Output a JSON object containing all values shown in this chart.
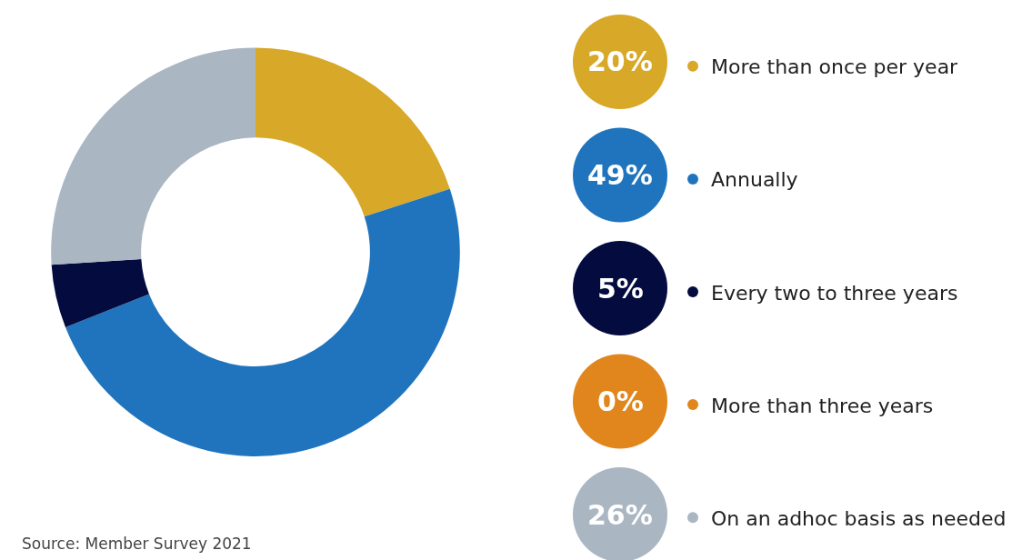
{
  "chart_data": {
    "type": "donut",
    "categories": [
      "More than once per year",
      "Annually",
      "Every two to three years",
      "More than three years",
      "On an adhoc basis as needed"
    ],
    "values": [
      20,
      49,
      5,
      0,
      26
    ],
    "colors": [
      "#d8a829",
      "#1f74bd",
      "#030b3f",
      "#e0861d",
      "#aab6c2"
    ],
    "value_labels": [
      "20%",
      "49%",
      "5%",
      "0%",
      "26%"
    ],
    "legend": "right",
    "annotations": [
      "Source: Member Survey 2021"
    ]
  }
}
